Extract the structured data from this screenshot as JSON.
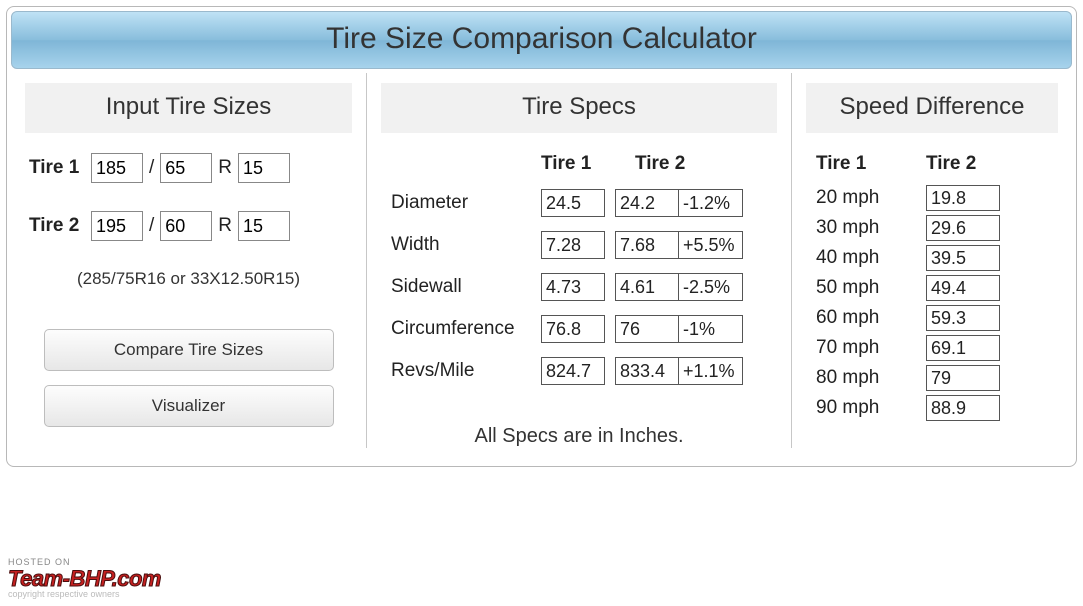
{
  "title": "Tire Size Comparison Calculator",
  "sections": {
    "input_title": "Input Tire Sizes",
    "specs_title": "Tire Specs",
    "speed_title": "Speed Difference"
  },
  "input": {
    "tire1_label": "Tire 1",
    "tire2_label": "Tire 2",
    "slash": "/",
    "r": "R",
    "t1": {
      "width": "185",
      "ratio": "65",
      "rim": "15"
    },
    "t2": {
      "width": "195",
      "ratio": "60",
      "rim": "15"
    },
    "hint": "(285/75R16 or 33X12.50R15)",
    "btn_compare": "Compare Tire Sizes",
    "btn_visualizer": "Visualizer"
  },
  "specs": {
    "col1": "Tire 1",
    "col2": "Tire 2",
    "rows": {
      "diameter": {
        "label": "Diameter",
        "v1": "24.5",
        "v2": "24.2",
        "pct": "-1.2%"
      },
      "width": {
        "label": "Width",
        "v1": "7.28",
        "v2": "7.68",
        "pct": "+5.5%"
      },
      "sidewall": {
        "label": "Sidewall",
        "v1": "4.73",
        "v2": "4.61",
        "pct": "-2.5%"
      },
      "circumference": {
        "label": "Circumference",
        "v1": "76.8",
        "v2": "76",
        "pct": "-1%"
      },
      "revs": {
        "label": "Revs/Mile",
        "v1": "824.7",
        "v2": "833.4",
        "pct": "+1.1%"
      }
    },
    "note": "All Specs are in Inches."
  },
  "speed": {
    "col1": "Tire 1",
    "col2": "Tire 2",
    "rows": {
      "r20": {
        "s1": "20 mph",
        "s2": "19.8"
      },
      "r30": {
        "s1": "30 mph",
        "s2": "29.6"
      },
      "r40": {
        "s1": "40 mph",
        "s2": "39.5"
      },
      "r50": {
        "s1": "50 mph",
        "s2": "49.4"
      },
      "r60": {
        "s1": "60 mph",
        "s2": "59.3"
      },
      "r70": {
        "s1": "70 mph",
        "s2": "69.1"
      },
      "r80": {
        "s1": "80 mph",
        "s2": "79"
      },
      "r90": {
        "s1": "90 mph",
        "s2": "88.9"
      }
    }
  },
  "watermark": {
    "hosted": "HOSTED ON",
    "brand": "Team-BHP.com",
    "sub": "copyright respective owners"
  },
  "colors": {
    "panel_border": "#b8b8b8",
    "title_gradient_top": "#bfe2f5",
    "title_gradient_bottom": "#a7d3ec",
    "section_bg": "#f1f1f1",
    "cell_border": "#555555",
    "button_border": "#bdbdbd",
    "text": "#333333",
    "brand_red": "#c62020"
  }
}
